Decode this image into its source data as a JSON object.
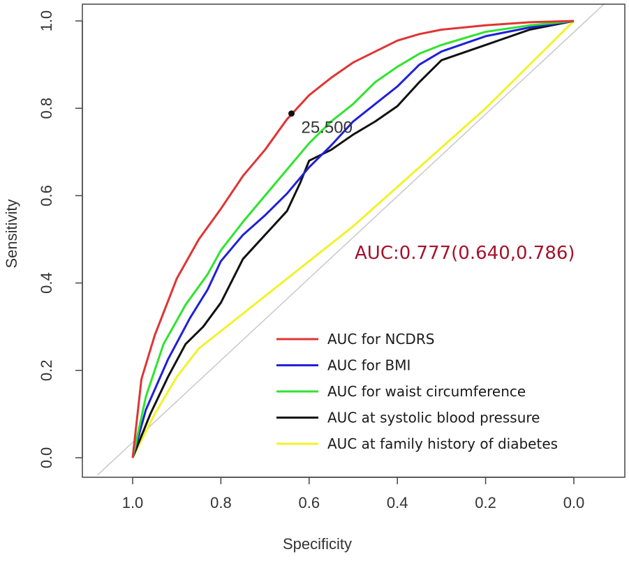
{
  "chart_data": {
    "type": "line",
    "xlabel": "Specificity",
    "ylabel": "Sensitivity",
    "xlim": [
      1.0,
      0.0
    ],
    "ylim": [
      0.0,
      1.0
    ],
    "x_reversed": true,
    "x_ticks": [
      "1.0",
      "0.8",
      "0.6",
      "0.4",
      "0.2",
      "0.0"
    ],
    "y_ticks": [
      "0.0",
      "0.2",
      "0.4",
      "0.6",
      "0.8",
      "1.0"
    ],
    "grid": false,
    "legend_position": "bottom-right",
    "reference_line": {
      "color": "#c8c8c8",
      "points": [
        [
          1.08,
          -0.04
        ],
        [
          -0.07,
          1.04
        ]
      ]
    },
    "annotation": {
      "label": "25.500",
      "x": 0.64,
      "y": 0.788
    },
    "auc_text": {
      "label": "AUC:0.777(0.640,0.786)",
      "color": "#a4122c"
    },
    "series": [
      {
        "name": "AUC for NCDRS",
        "color": "#e03434",
        "points": [
          [
            1.0,
            0.0
          ],
          [
            0.98,
            0.18
          ],
          [
            0.95,
            0.28
          ],
          [
            0.9,
            0.41
          ],
          [
            0.85,
            0.5
          ],
          [
            0.8,
            0.57
          ],
          [
            0.75,
            0.645
          ],
          [
            0.7,
            0.705
          ],
          [
            0.65,
            0.775
          ],
          [
            0.6,
            0.83
          ],
          [
            0.55,
            0.87
          ],
          [
            0.5,
            0.905
          ],
          [
            0.45,
            0.93
          ],
          [
            0.4,
            0.955
          ],
          [
            0.35,
            0.97
          ],
          [
            0.3,
            0.98
          ],
          [
            0.2,
            0.99
          ],
          [
            0.1,
            0.997
          ],
          [
            0.0,
            1.0
          ]
        ]
      },
      {
        "name": "AUC for BMI",
        "color": "#2020d8",
        "points": [
          [
            1.0,
            0.0
          ],
          [
            0.97,
            0.11
          ],
          [
            0.92,
            0.225
          ],
          [
            0.87,
            0.32
          ],
          [
            0.83,
            0.385
          ],
          [
            0.8,
            0.45
          ],
          [
            0.75,
            0.51
          ],
          [
            0.7,
            0.555
          ],
          [
            0.65,
            0.605
          ],
          [
            0.6,
            0.665
          ],
          [
            0.55,
            0.715
          ],
          [
            0.5,
            0.77
          ],
          [
            0.45,
            0.81
          ],
          [
            0.4,
            0.85
          ],
          [
            0.35,
            0.9
          ],
          [
            0.3,
            0.93
          ],
          [
            0.2,
            0.965
          ],
          [
            0.1,
            0.985
          ],
          [
            0.0,
            1.0
          ]
        ]
      },
      {
        "name": "AUC for waist circumference",
        "color": "#2ee42e",
        "points": [
          [
            1.0,
            0.0
          ],
          [
            0.97,
            0.14
          ],
          [
            0.93,
            0.26
          ],
          [
            0.88,
            0.35
          ],
          [
            0.83,
            0.42
          ],
          [
            0.8,
            0.475
          ],
          [
            0.75,
            0.54
          ],
          [
            0.7,
            0.6
          ],
          [
            0.65,
            0.66
          ],
          [
            0.6,
            0.72
          ],
          [
            0.55,
            0.77
          ],
          [
            0.5,
            0.81
          ],
          [
            0.45,
            0.86
          ],
          [
            0.4,
            0.895
          ],
          [
            0.35,
            0.925
          ],
          [
            0.3,
            0.945
          ],
          [
            0.2,
            0.975
          ],
          [
            0.1,
            0.99
          ],
          [
            0.0,
            1.0
          ]
        ]
      },
      {
        "name": "AUC at systolic blood pressure",
        "color": "#111111",
        "points": [
          [
            1.0,
            0.0
          ],
          [
            0.96,
            0.1
          ],
          [
            0.92,
            0.185
          ],
          [
            0.88,
            0.26
          ],
          [
            0.84,
            0.3
          ],
          [
            0.8,
            0.355
          ],
          [
            0.75,
            0.455
          ],
          [
            0.7,
            0.51
          ],
          [
            0.65,
            0.565
          ],
          [
            0.62,
            0.63
          ],
          [
            0.6,
            0.68
          ],
          [
            0.55,
            0.705
          ],
          [
            0.5,
            0.74
          ],
          [
            0.45,
            0.77
          ],
          [
            0.4,
            0.805
          ],
          [
            0.35,
            0.86
          ],
          [
            0.3,
            0.91
          ],
          [
            0.2,
            0.945
          ],
          [
            0.1,
            0.98
          ],
          [
            0.0,
            1.0
          ]
        ]
      },
      {
        "name": "AUC at family history of diabetes",
        "color": "#f2f22a",
        "points": [
          [
            1.0,
            0.0
          ],
          [
            0.95,
            0.1
          ],
          [
            0.9,
            0.185
          ],
          [
            0.85,
            0.25
          ],
          [
            0.8,
            0.29
          ],
          [
            0.7,
            0.37
          ],
          [
            0.6,
            0.45
          ],
          [
            0.5,
            0.53
          ],
          [
            0.4,
            0.62
          ],
          [
            0.3,
            0.71
          ],
          [
            0.2,
            0.8
          ],
          [
            0.1,
            0.9
          ],
          [
            0.0,
            1.0
          ]
        ]
      }
    ]
  }
}
